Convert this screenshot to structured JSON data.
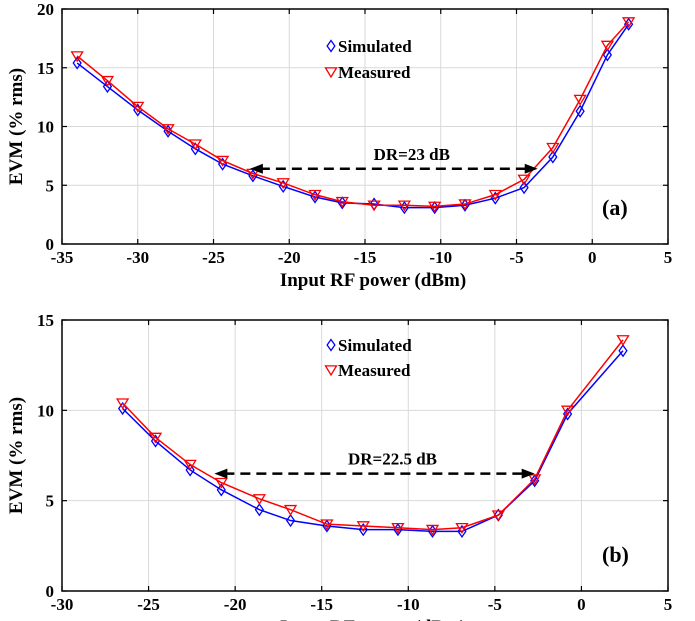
{
  "chart_data": [
    {
      "type": "line",
      "panel_label": "(a)",
      "xlabel": "Input RF power (dBm)",
      "ylabel": "EVM (% rms)",
      "xlim": [
        -35,
        5
      ],
      "ylim": [
        0,
        20
      ],
      "xticks": [
        "-35",
        "-30",
        "-25",
        "-20",
        "-15",
        "-10",
        "-5",
        "0",
        "5"
      ],
      "yticks": [
        "0",
        "5",
        "10",
        "15",
        "20"
      ],
      "grid": true,
      "legend_position": "top-center",
      "annotation": {
        "text": "DR=23 dB",
        "x_start": -22.6,
        "x_end": -3.6,
        "y": 6.4
      },
      "series": [
        {
          "name": "Simulated",
          "color": "#0000ff",
          "marker": "diamond",
          "x": [
            -34,
            -32,
            -30,
            -28,
            -26.2,
            -24.4,
            -22.4,
            -20.4,
            -18.3,
            -16.5,
            -14.4,
            -12.4,
            -10.4,
            -8.4,
            -6.4,
            -4.5,
            -2.6,
            -0.8,
            1.0,
            2.4
          ],
          "y": [
            15.4,
            13.4,
            11.4,
            9.6,
            8.1,
            6.8,
            5.8,
            4.9,
            4.0,
            3.5,
            3.4,
            3.1,
            3.1,
            3.3,
            3.9,
            4.8,
            7.4,
            11.3,
            16.1,
            18.7
          ]
        },
        {
          "name": "Measured",
          "color": "#ff0000",
          "marker": "triangle-down",
          "x": [
            -34,
            -32,
            -30,
            -28,
            -26.2,
            -24.4,
            -22.4,
            -20.4,
            -18.3,
            -16.5,
            -14.4,
            -12.4,
            -10.4,
            -8.4,
            -6.4,
            -4.5,
            -2.6,
            -0.8,
            1.0,
            2.4
          ],
          "y": [
            16.0,
            13.9,
            11.7,
            9.8,
            8.5,
            7.1,
            6.0,
            5.2,
            4.2,
            3.6,
            3.3,
            3.3,
            3.2,
            3.4,
            4.2,
            5.5,
            8.2,
            12.3,
            16.9,
            18.9
          ]
        }
      ]
    },
    {
      "type": "line",
      "panel_label": "(b)",
      "xlabel": "Input RF power (dBm)",
      "ylabel": "EVM (% rms)",
      "xlim": [
        -30,
        5
      ],
      "ylim": [
        0,
        15
      ],
      "xticks": [
        "-30",
        "-25",
        "-20",
        "-15",
        "-10",
        "-5",
        "0",
        "5"
      ],
      "yticks": [
        "0",
        "5",
        "10",
        "15"
      ],
      "grid": true,
      "legend_position": "top-center",
      "annotation": {
        "text": "DR=22.5 dB",
        "x_start": -21.2,
        "x_end": -2.7,
        "y": 6.5
      },
      "series": [
        {
          "name": "Simulated",
          "color": "#0000ff",
          "marker": "diamond",
          "x": [
            -26.5,
            -24.6,
            -22.6,
            -20.8,
            -18.6,
            -16.8,
            -14.7,
            -12.6,
            -10.6,
            -8.6,
            -6.9,
            -4.8,
            -2.7,
            -0.8,
            2.4
          ],
          "y": [
            10.1,
            8.3,
            6.7,
            5.6,
            4.5,
            3.9,
            3.6,
            3.4,
            3.4,
            3.3,
            3.3,
            4.2,
            6.1,
            9.8,
            13.3
          ]
        },
        {
          "name": "Measured",
          "color": "#ff0000",
          "marker": "triangle-down",
          "x": [
            -26.5,
            -24.6,
            -22.6,
            -20.8,
            -18.6,
            -16.8,
            -14.7,
            -12.6,
            -10.6,
            -8.6,
            -6.9,
            -4.8,
            -2.7,
            -0.8,
            2.4
          ],
          "y": [
            10.4,
            8.5,
            7.0,
            6.0,
            5.1,
            4.5,
            3.7,
            3.6,
            3.5,
            3.4,
            3.5,
            4.2,
            6.2,
            10.0,
            13.9
          ]
        }
      ]
    }
  ]
}
